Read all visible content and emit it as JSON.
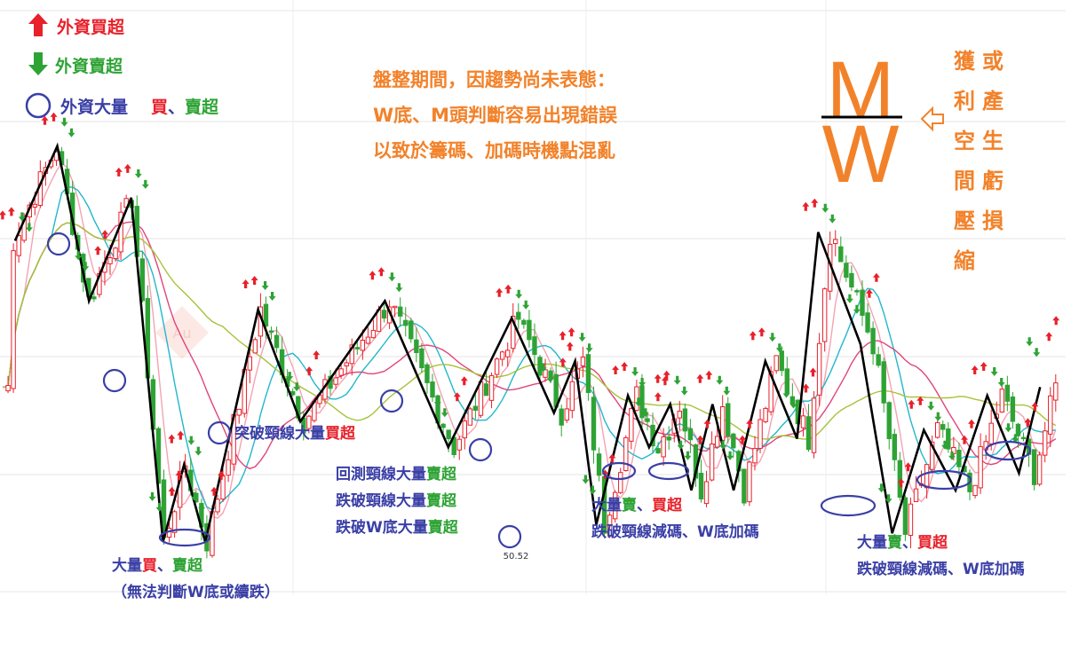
{
  "legend": {
    "foreign_buy": "外資買超",
    "foreign_sell": "外資賣超",
    "foreign_big": "外資大量",
    "buy": "買",
    "sep": "、",
    "sell": "賣超",
    "buy_color": "#e8202a",
    "sell_color": "#2ea335",
    "circle_color": "#3a3fa6"
  },
  "note": {
    "line1": "盤整期間，因趨勢尚未表態：",
    "line2": "W底、M頭判斷容易出現錯誤",
    "line3": "以致於籌碼、加碼時機點混亂"
  },
  "mw": {
    "m": "M",
    "w": "W",
    "arrow_icon": "hollow-left-arrow"
  },
  "side": {
    "col1": [
      "獲",
      "利",
      "空",
      "間",
      "壓",
      "縮"
    ],
    "col2": [
      "或",
      "產",
      "生",
      "虧",
      "損"
    ]
  },
  "labels": {
    "a": "突破頸線大量",
    "a_buy": "買超",
    "b1_pre": "回測頸線大量",
    "b1_post": "賣超",
    "b2_pre": "跌破頸線大量",
    "b2_post": "賣超",
    "b3_pre": "跌破W底大量",
    "b3_post": "賣超",
    "low_value": "50.52",
    "c_big": "大量",
    "c_buy": "買",
    "c_sep": "、",
    "c_sell": "賣超",
    "c_note": "（無法判斷W底或續跌）",
    "d_big": "大量",
    "d_sell": "賣",
    "d_sep": "、",
    "d_buy": "買超",
    "d_note": "跌破頸線減碼、W底加碼",
    "e_big": "大量",
    "e_sell": "賣",
    "e_sep": "、",
    "e_buy": "買超",
    "e_note": "跌破頸線減碼、W底加碼"
  },
  "watermark": "Au",
  "colors": {
    "up": "#e8202a",
    "down": "#2ea335",
    "zigzag": "#000000",
    "ma_short": "#f4a3b3",
    "ma_mid": "#22b7cc",
    "ma_long": "#e0457b",
    "ma_longest": "#a8c23a",
    "accent": "#f2822a"
  },
  "chart_data": {
    "type": "candlestick",
    "price_label": "50.52",
    "zigzag_pivots": [
      {
        "x": 1,
        "y": 78
      },
      {
        "x": 5,
        "y": 89
      },
      {
        "x": 8,
        "y": 71
      },
      {
        "x": 12,
        "y": 83
      },
      {
        "x": 15,
        "y": 43
      },
      {
        "x": 17,
        "y": 52
      },
      {
        "x": 19,
        "y": 43
      },
      {
        "x": 24,
        "y": 70
      },
      {
        "x": 28,
        "y": 57
      },
      {
        "x": 36,
        "y": 71
      },
      {
        "x": 42,
        "y": 54
      },
      {
        "x": 48,
        "y": 69
      },
      {
        "x": 52,
        "y": 58
      },
      {
        "x": 54,
        "y": 64
      },
      {
        "x": 56,
        "y": 45
      },
      {
        "x": 59,
        "y": 60
      },
      {
        "x": 61,
        "y": 54
      },
      {
        "x": 63,
        "y": 59
      },
      {
        "x": 65,
        "y": 49
      },
      {
        "x": 67,
        "y": 59
      },
      {
        "x": 69,
        "y": 49
      },
      {
        "x": 72,
        "y": 64
      },
      {
        "x": 75,
        "y": 55
      },
      {
        "x": 77,
        "y": 79
      },
      {
        "x": 81,
        "y": 66
      },
      {
        "x": 84,
        "y": 44
      },
      {
        "x": 87,
        "y": 56
      },
      {
        "x": 90,
        "y": 49
      },
      {
        "x": 93,
        "y": 60
      },
      {
        "x": 96,
        "y": 51
      },
      {
        "x": 98,
        "y": 61
      }
    ]
  }
}
